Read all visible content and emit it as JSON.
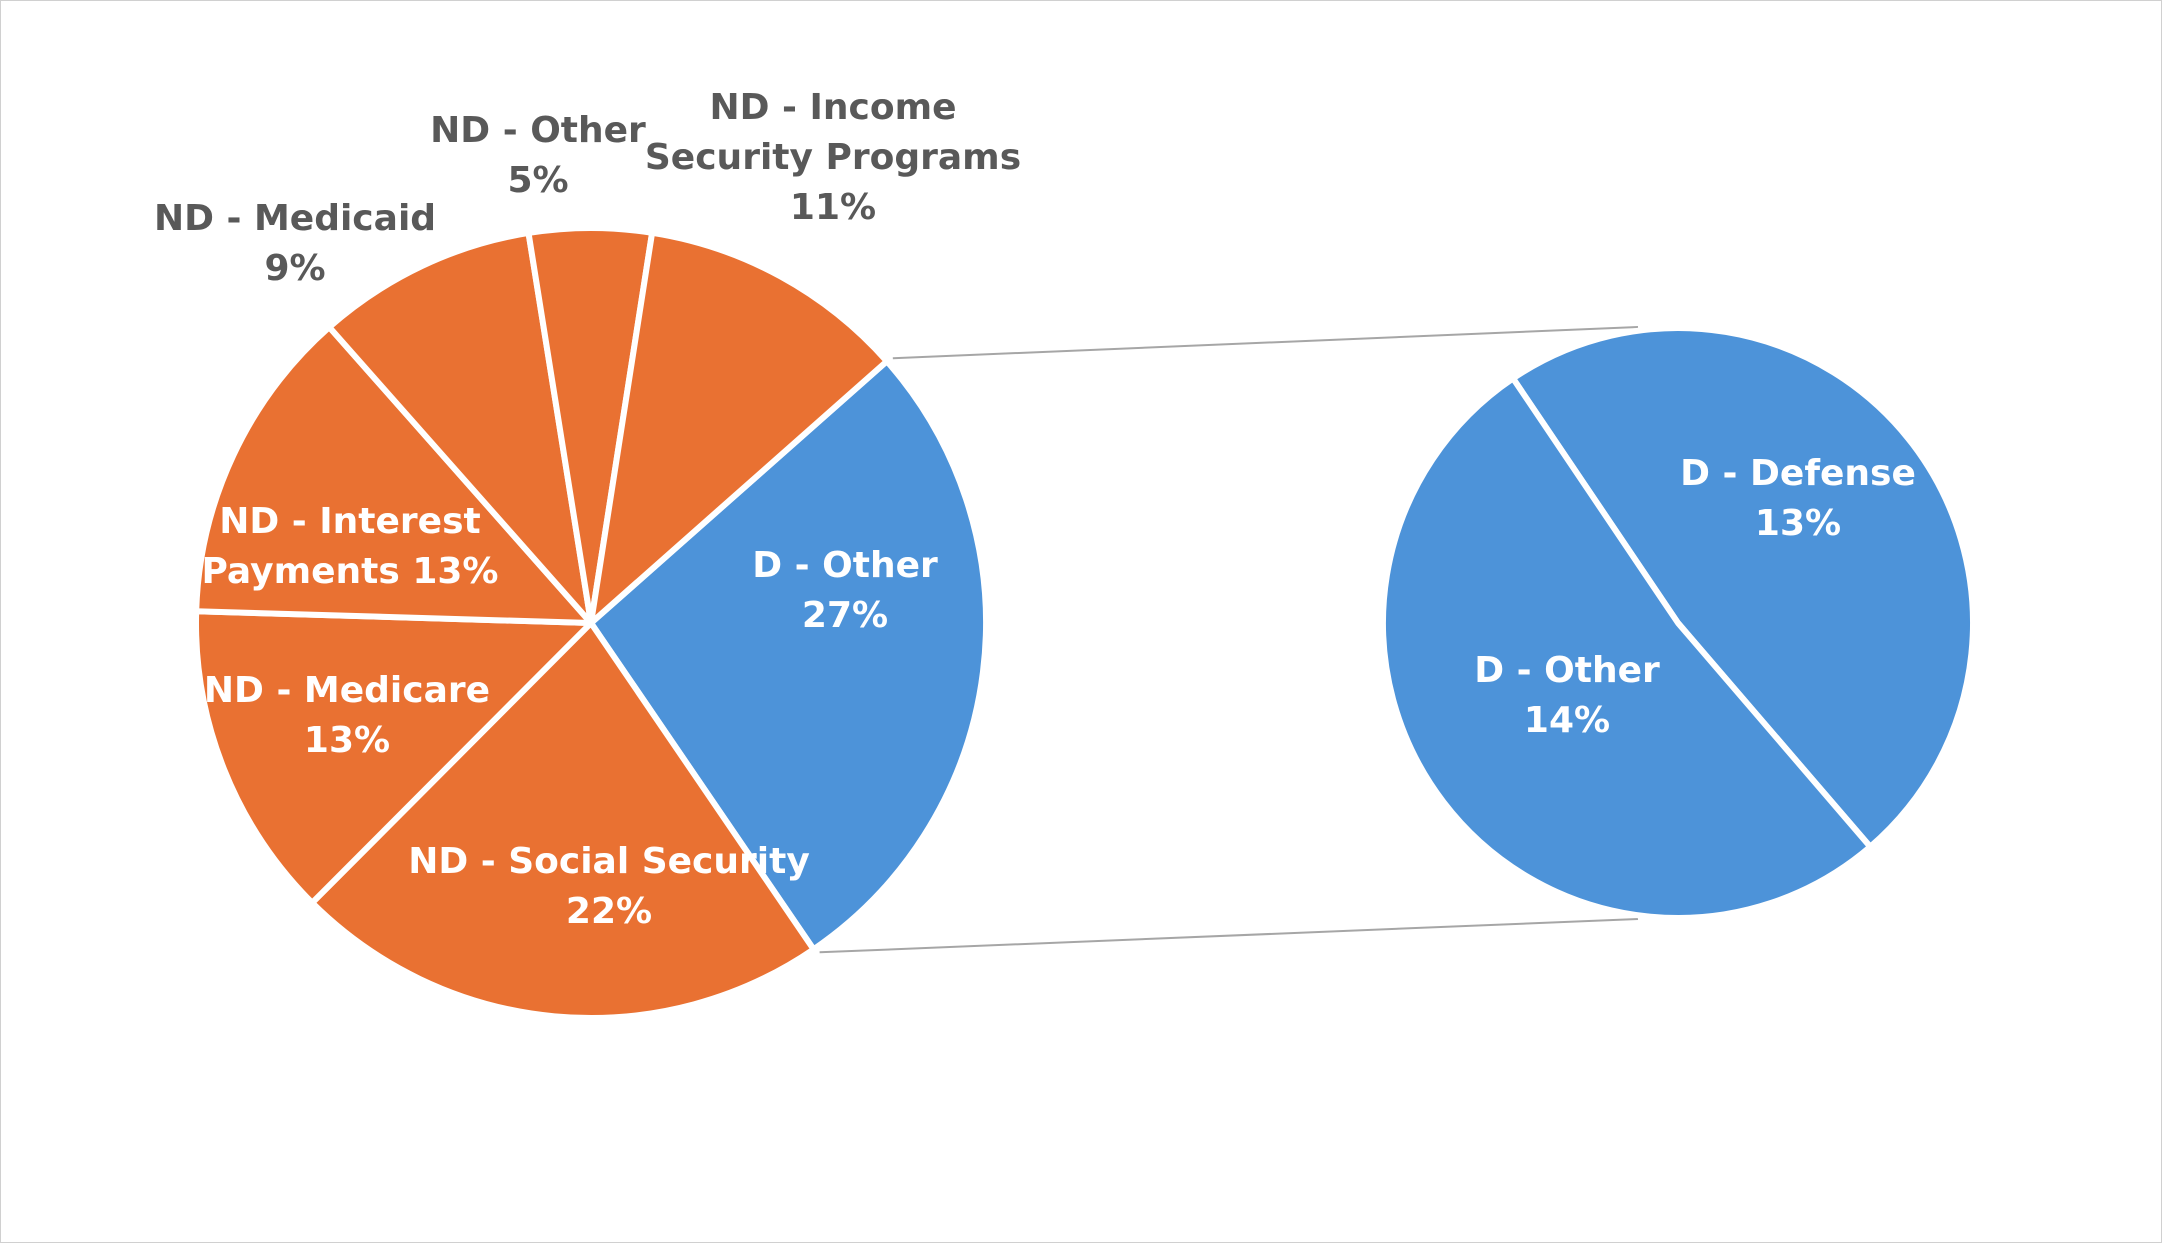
{
  "chart_data": {
    "type": "pie-of-pie",
    "colors": {
      "non_discretionary": "#E97132",
      "discretionary": "#4D93D9"
    },
    "main_pie": {
      "slices": [
        {
          "name": "D - Other",
          "value": 27,
          "label_lines": [
            "D - Other",
            "27%"
          ],
          "group": "discretionary"
        },
        {
          "name": "ND - Social Security",
          "value": 22,
          "label_lines": [
            "ND - Social Security",
            "22%"
          ],
          "group": "non_discretionary"
        },
        {
          "name": "ND - Medicare",
          "value": 13,
          "label_lines": [
            "ND - Medicare",
            "13%"
          ],
          "group": "non_discretionary"
        },
        {
          "name": "ND - Interest Payments",
          "value": 13,
          "label_lines": [
            "ND - Interest",
            "Payments 13%"
          ],
          "group": "non_discretionary"
        },
        {
          "name": "ND - Medicaid",
          "value": 9,
          "label_lines": [
            "ND - Medicaid",
            "9%"
          ],
          "group": "non_discretionary"
        },
        {
          "name": "ND - Other",
          "value": 5,
          "label_lines": [
            "ND - Other",
            "5%"
          ],
          "group": "non_discretionary"
        },
        {
          "name": "ND - Income Security Programs",
          "value": 11,
          "label_lines": [
            "ND - Income",
            "Security Programs",
            "11%"
          ],
          "group": "non_discretionary"
        }
      ]
    },
    "secondary_pie": {
      "slices": [
        {
          "name": "D - Defense",
          "value": 13,
          "label_lines": [
            "D - Defense",
            "13%"
          ],
          "group": "discretionary"
        },
        {
          "name": "D - Other",
          "value": 14,
          "label_lines": [
            "D - Other",
            "14%"
          ],
          "group": "discretionary"
        }
      ]
    }
  }
}
